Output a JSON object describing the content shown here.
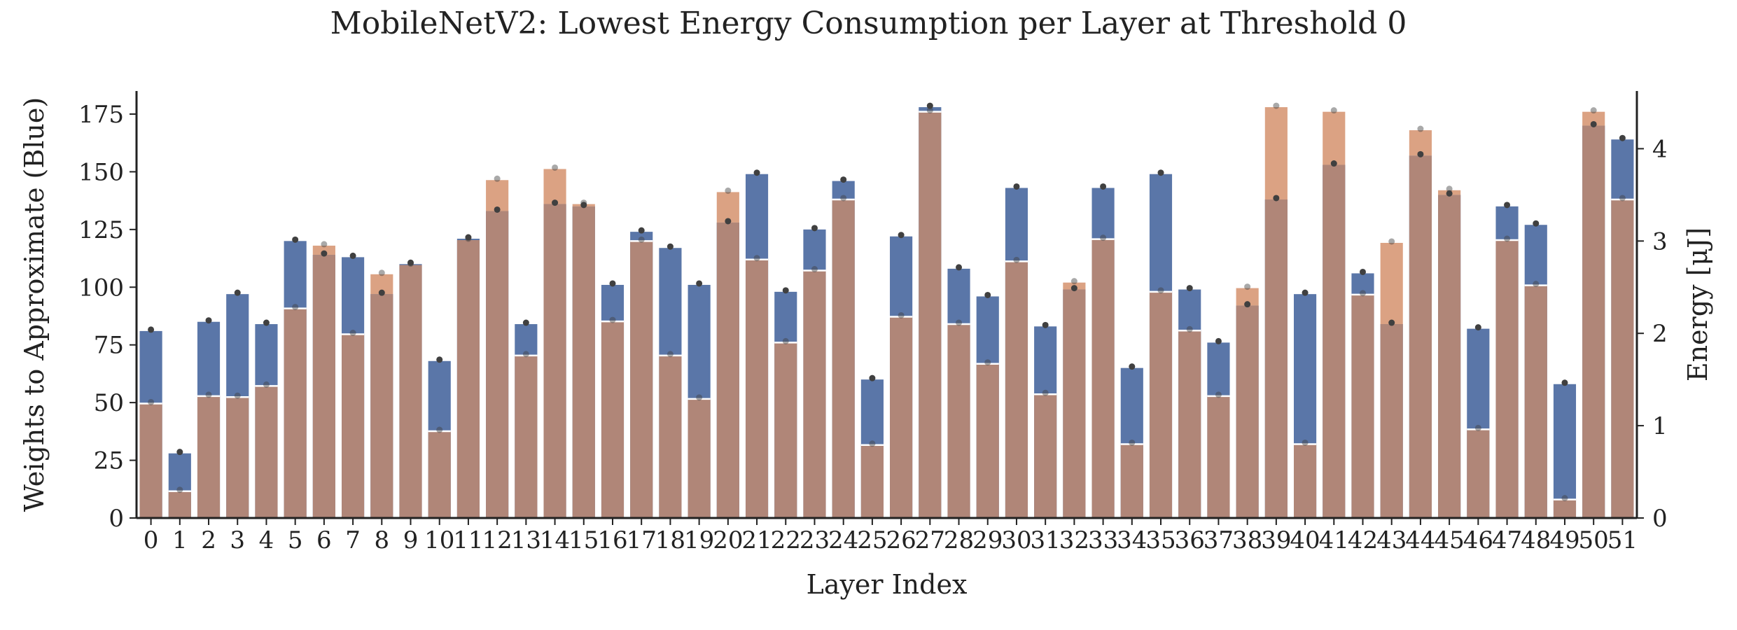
{
  "chart_data": {
    "type": "bar",
    "title": "MobileNetV2: Lowest Energy Consumption per Layer at Threshold 0",
    "xlabel": "Layer Index",
    "ylabel_left": "Weights to Approximate (Blue)",
    "ylabel_right": "Energy [μJ]",
    "ylim_left": [
      0,
      185
    ],
    "ylim_right": [
      0,
      4.625
    ],
    "yticks_left": [
      0,
      25,
      50,
      75,
      100,
      125,
      150,
      175
    ],
    "yticks_right": [
      0,
      1,
      2,
      3,
      4
    ],
    "categories": [
      "0",
      "1",
      "2",
      "3",
      "4",
      "5",
      "6",
      "7",
      "8",
      "9",
      "10",
      "11",
      "12",
      "13",
      "14",
      "15",
      "16",
      "17",
      "18",
      "19",
      "20",
      "21",
      "22",
      "23",
      "24",
      "25",
      "26",
      "27",
      "28",
      "29",
      "30",
      "31",
      "32",
      "33",
      "34",
      "35",
      "36",
      "37",
      "38",
      "39",
      "40",
      "41",
      "42",
      "43",
      "44",
      "45",
      "46",
      "47",
      "48",
      "49",
      "50",
      "51"
    ],
    "series": [
      {
        "axis": "left",
        "values": [
          81,
          28,
          85,
          97,
          84,
          120,
          114,
          113,
          97,
          110,
          68,
          121,
          133,
          84,
          136,
          135,
          101,
          124,
          117,
          101,
          128,
          149,
          98,
          125,
          146,
          60,
          122,
          178,
          108,
          96,
          143,
          83,
          99,
          143,
          65,
          149,
          99,
          76,
          92,
          138,
          97,
          153,
          106,
          84,
          157,
          140,
          82,
          135,
          127,
          58,
          170,
          164
        ]
      },
      {
        "axis": "right",
        "values": [
          1.24,
          0.29,
          1.32,
          1.31,
          1.43,
          2.27,
          2.95,
          1.99,
          2.64,
          2.74,
          0.94,
          3.01,
          3.66,
          1.76,
          3.78,
          3.4,
          2.13,
          3.0,
          1.76,
          1.29,
          3.53,
          2.8,
          1.9,
          2.68,
          3.45,
          0.79,
          2.18,
          4.4,
          2.1,
          1.67,
          2.78,
          1.34,
          2.55,
          3.02,
          0.8,
          2.45,
          2.03,
          1.32,
          2.49,
          4.45,
          0.8,
          4.4,
          2.42,
          2.98,
          4.2,
          3.55,
          0.96,
          3.01,
          2.52,
          0.2,
          4.4,
          3.45
        ]
      }
    ],
    "grid": false,
    "legend": "none",
    "colors": {
      "weights_bar": "#5a76a8",
      "energy_bar": "#dba283",
      "energy_bar_overlap": "#b08678",
      "marker": "#404040",
      "axis": "#222222"
    }
  }
}
